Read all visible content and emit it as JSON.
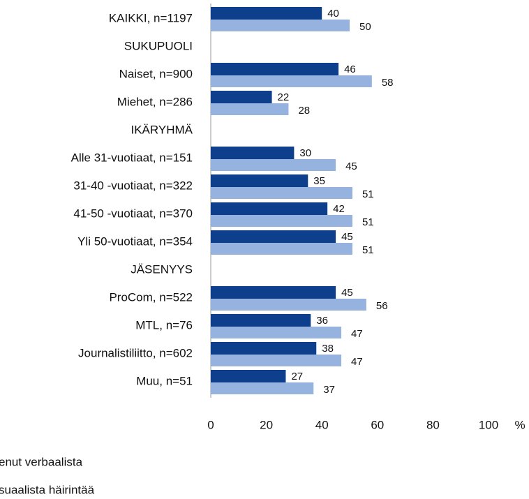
{
  "chart_data": {
    "type": "hbar",
    "categories": [
      "KAIKKI, n=1197",
      "SUKUPUOLI",
      "Naiset, n=900",
      "Miehet, n=286",
      "IKÄRYHMÄ",
      "Alle 31-vuotiaat, n=151",
      "31-40 -vuotiaat, n=322",
      "41-50 -vuotiaat, n=370",
      "Yli 50-vuotiaat, n=354",
      "JÄSENYYS",
      "ProCom, n=522",
      "MTL, n=76",
      "Journalistiliitto, n=602",
      "Muu, n=51"
    ],
    "series": [
      {
        "name": "enut verbaalista",
        "color": "#0e3f8c",
        "values": [
          40,
          null,
          46,
          22,
          null,
          30,
          35,
          42,
          45,
          null,
          45,
          36,
          38,
          27
        ]
      },
      {
        "name": "suaalista häirintää",
        "color": "#95b3de",
        "values": [
          50,
          null,
          58,
          28,
          null,
          45,
          51,
          51,
          51,
          null,
          56,
          47,
          47,
          37
        ]
      }
    ],
    "xlim": [
      0,
      100
    ],
    "xticks": [
      0,
      20,
      40,
      60,
      80,
      100
    ],
    "x_label": "%"
  }
}
